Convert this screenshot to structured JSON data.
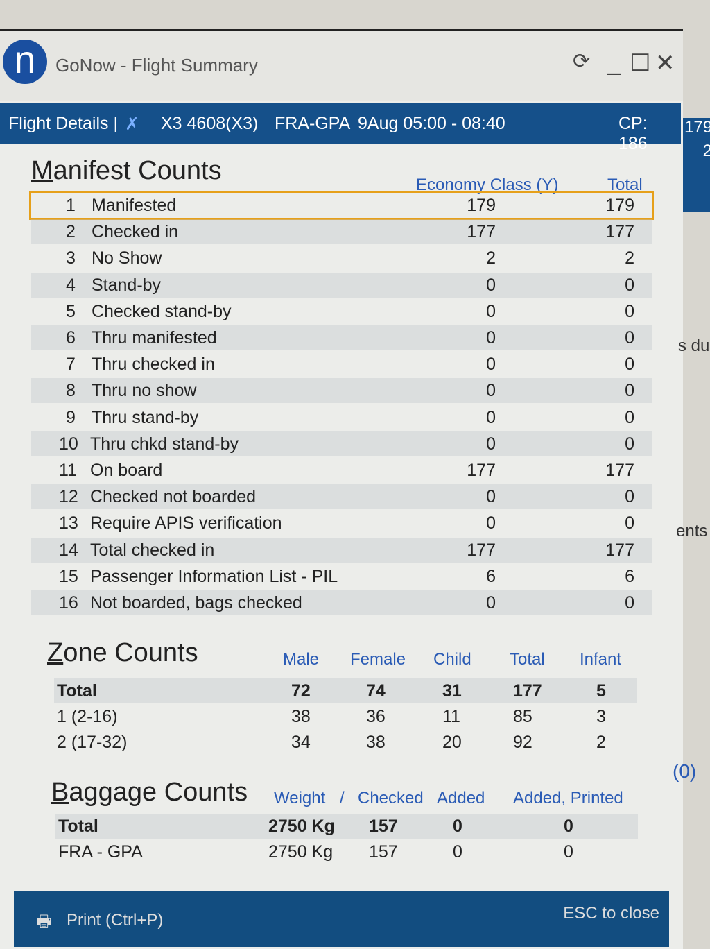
{
  "window": {
    "title": "GoNow - Flight Summary",
    "logo_letter": "n"
  },
  "header": {
    "label": "Flight Details |",
    "flight": "X3 4608(X3)",
    "route": "FRA-GPA",
    "schedule": "9Aug 05:00 - 08:40",
    "cp": "CP: 186"
  },
  "manifest": {
    "title": "Manifest Counts",
    "col_economy": "Economy Class (Y)",
    "col_total": "Total",
    "rows": [
      {
        "n": "1",
        "label": "Manifested",
        "eco": "179",
        "total": "179"
      },
      {
        "n": "2",
        "label": "Checked in",
        "eco": "177",
        "total": "177"
      },
      {
        "n": "3",
        "label": "No Show",
        "eco": "2",
        "total": "2"
      },
      {
        "n": "4",
        "label": "Stand-by",
        "eco": "0",
        "total": "0"
      },
      {
        "n": "5",
        "label": "Checked stand-by",
        "eco": "0",
        "total": "0"
      },
      {
        "n": "6",
        "label": "Thru manifested",
        "eco": "0",
        "total": "0"
      },
      {
        "n": "7",
        "label": "Thru checked in",
        "eco": "0",
        "total": "0"
      },
      {
        "n": "8",
        "label": "Thru no show",
        "eco": "0",
        "total": "0"
      },
      {
        "n": "9",
        "label": "Thru stand-by",
        "eco": "0",
        "total": "0"
      },
      {
        "n": "10",
        "label": "Thru chkd stand-by",
        "eco": "0",
        "total": "0"
      },
      {
        "n": "11",
        "label": "On board",
        "eco": "177",
        "total": "177"
      },
      {
        "n": "12",
        "label": "Checked not boarded",
        "eco": "0",
        "total": "0"
      },
      {
        "n": "13",
        "label": "Require APIS verification",
        "eco": "0",
        "total": "0"
      },
      {
        "n": "14",
        "label": "Total checked in",
        "eco": "177",
        "total": "177"
      },
      {
        "n": "15",
        "label": "Passenger Information List - PIL",
        "eco": "6",
        "total": "6"
      },
      {
        "n": "16",
        "label": "Not boarded, bags checked",
        "eco": "0",
        "total": "0"
      }
    ]
  },
  "zones": {
    "title": "Zone Counts",
    "cols": [
      "Male",
      "Female",
      "Child",
      "Total",
      "Infant"
    ],
    "rows": [
      {
        "label": "Total",
        "v": [
          "72",
          "74",
          "31",
          "177",
          "5"
        ]
      },
      {
        "label": "1 (2-16)",
        "v": [
          "38",
          "36",
          "11",
          "85",
          "3"
        ]
      },
      {
        "label": "2 (17-32)",
        "v": [
          "34",
          "38",
          "20",
          "92",
          "2"
        ]
      }
    ]
  },
  "baggage": {
    "title": "Baggage Counts",
    "cols": [
      "Weight",
      "/",
      "Checked",
      "Added",
      "Added, Printed"
    ],
    "rows": [
      {
        "label": "Total",
        "v": [
          "2750 Kg",
          "157",
          "0",
          "0"
        ]
      },
      {
        "label": "FRA - GPA",
        "v": [
          "2750 Kg",
          "157",
          "0",
          "0"
        ]
      }
    ]
  },
  "footer": {
    "print": "Print (Ctrl+P)",
    "close": "ESC to close"
  },
  "background_window": {
    "fragments": [
      "179",
      "2",
      "s du",
      "ents",
      "(0)"
    ]
  }
}
